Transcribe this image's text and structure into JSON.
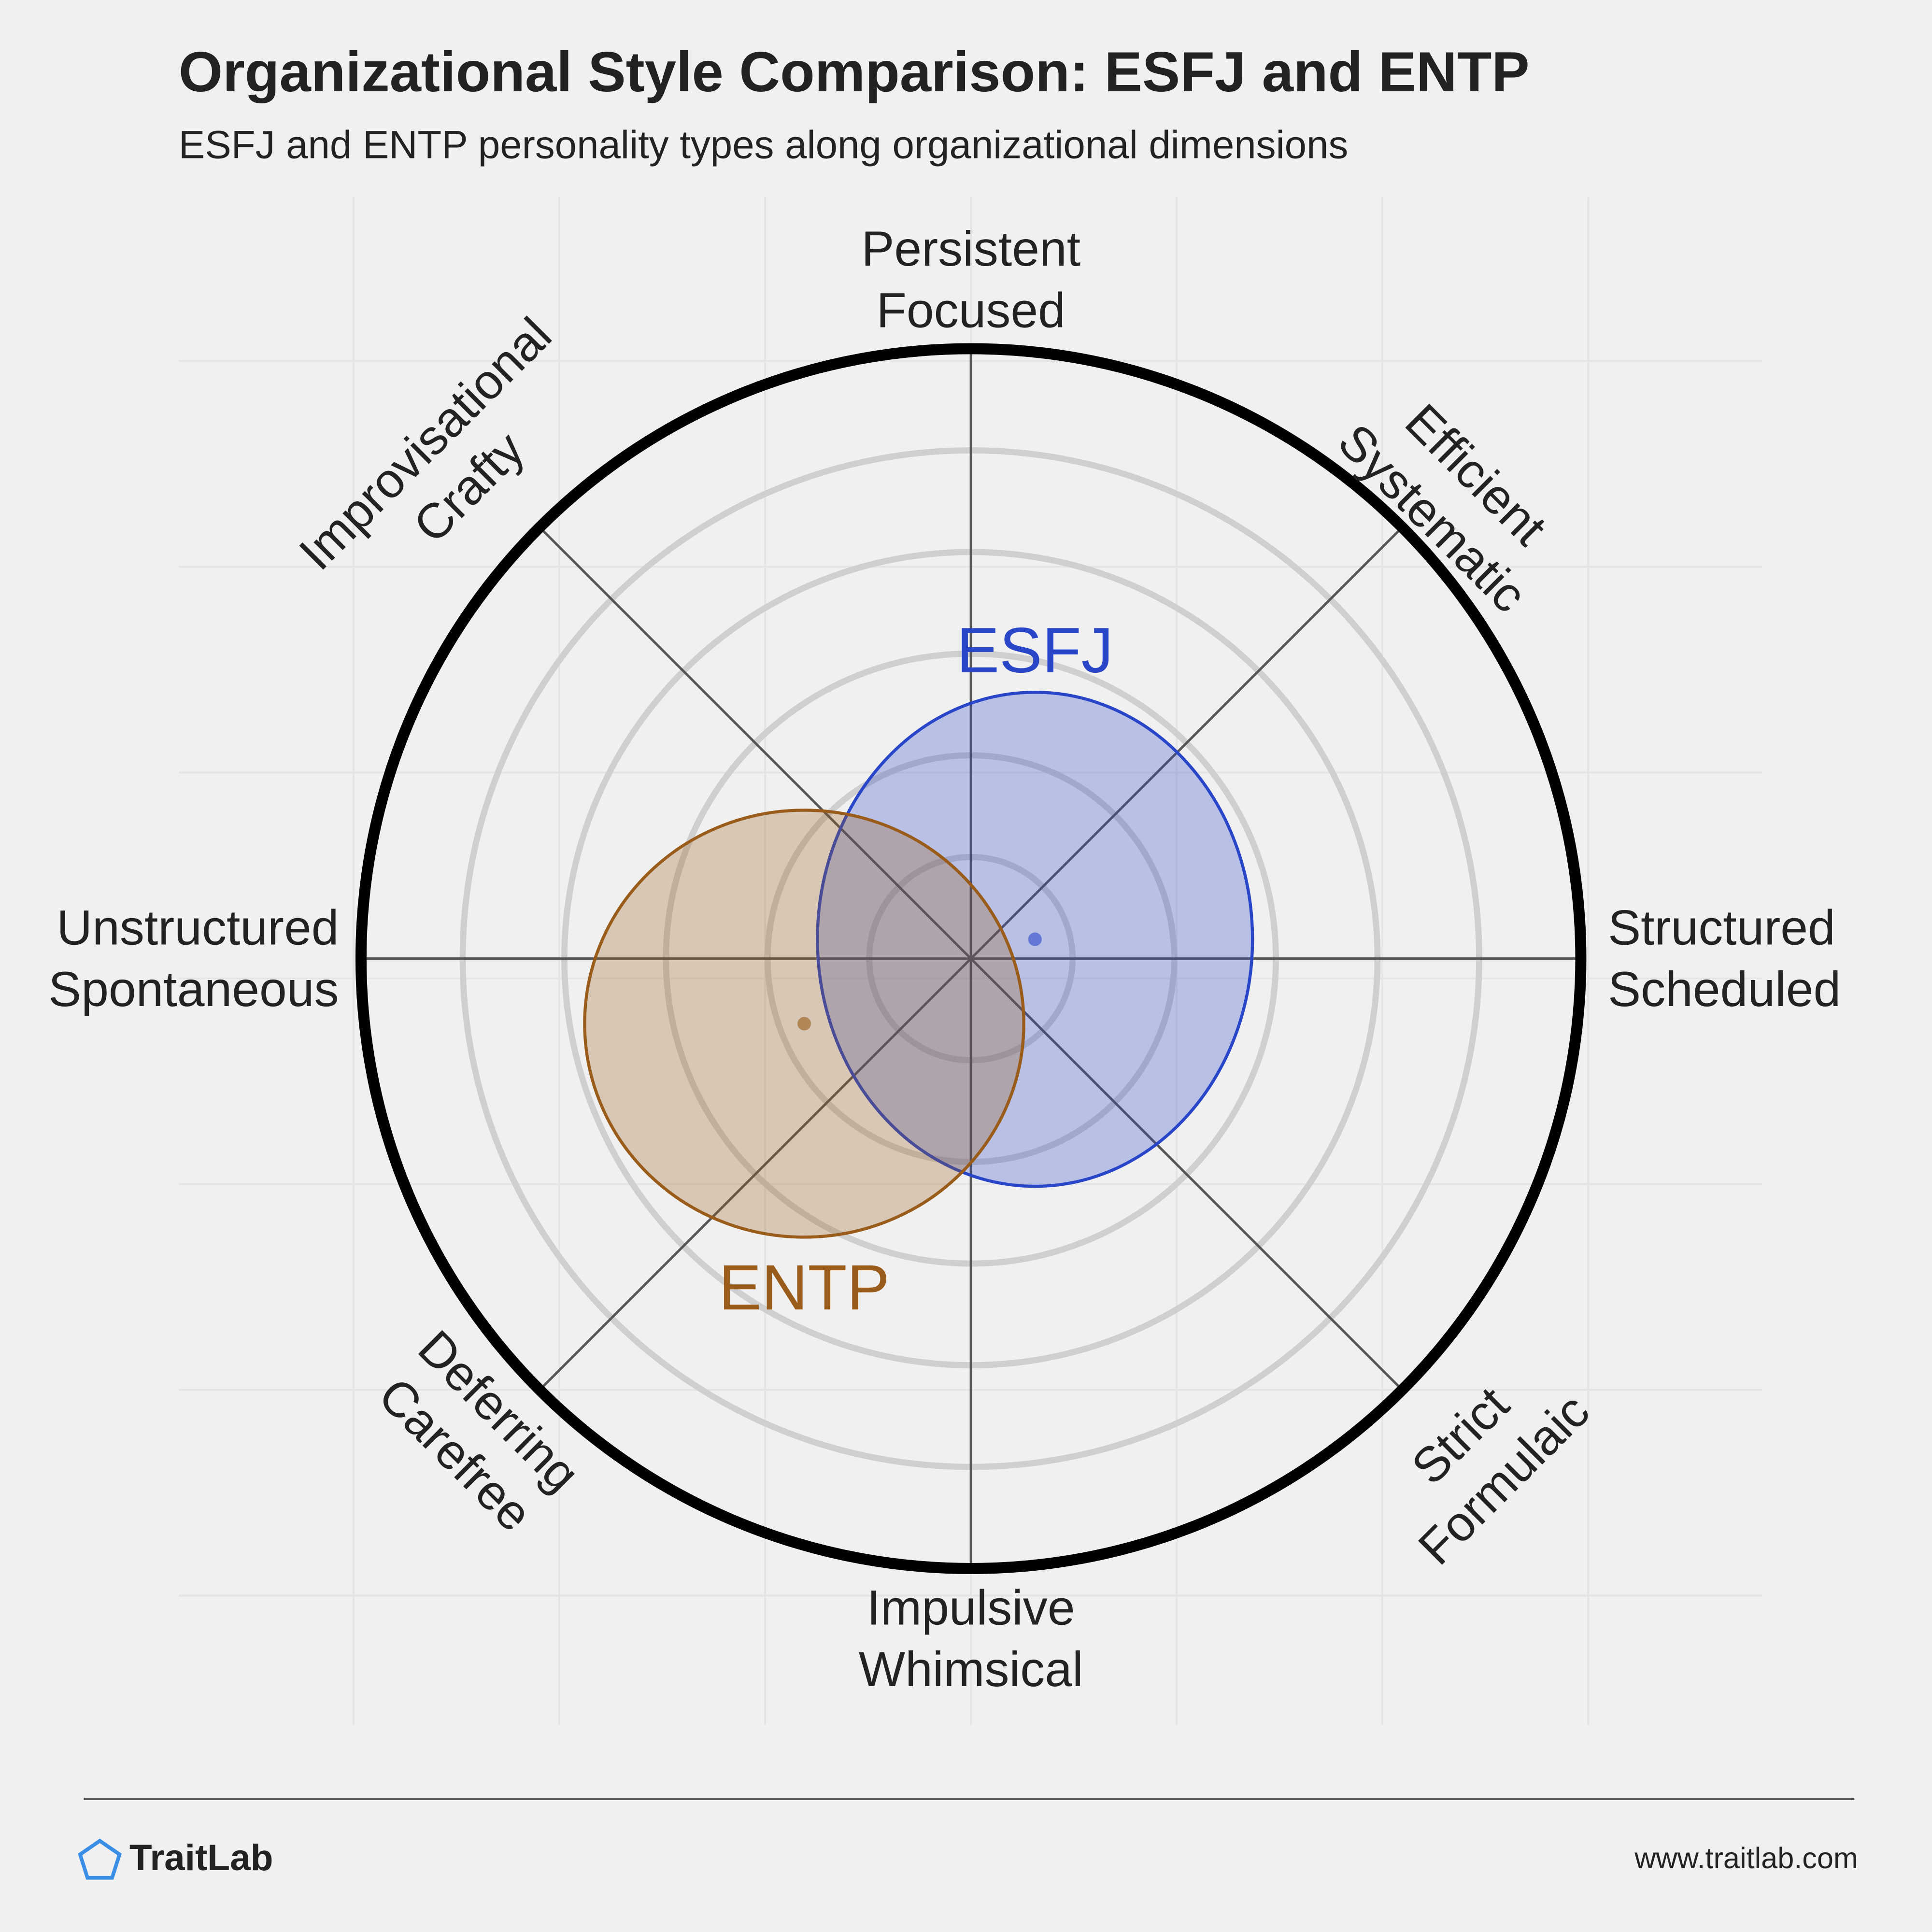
{
  "chart_data": {
    "type": "radial-ellipse",
    "title": "Organizational Style Comparison: ESFJ and ENTP",
    "subtitle": "ESFJ and ENTP personality types along organizational dimensions",
    "axis_labels": [
      [
        "Persistent",
        "Focused"
      ],
      [
        "Efficient",
        "Systematic"
      ],
      [
        "Structured",
        "Scheduled"
      ],
      [
        "Strict",
        "Formulaic"
      ],
      [
        "Impulsive",
        "Whimsical"
      ],
      [
        "Deferring",
        "Carefree"
      ],
      [
        "Unstructured",
        "Spontaneous"
      ],
      [
        "Improvisational",
        "Crafty"
      ]
    ],
    "rlim": [
      0,
      6
    ],
    "rticks": [
      1,
      2,
      3,
      4,
      5
    ],
    "series": [
      {
        "name": "ESFJ",
        "color": "#2a46c8",
        "x": 0.63,
        "y": 0.19,
        "rx": 2.14,
        "ry": 2.43
      },
      {
        "name": "ENTP",
        "color": "#9a5c1a",
        "x": -1.64,
        "y": -0.64,
        "rx": 2.16,
        "ry": 2.1
      }
    ]
  },
  "footer": {
    "brand": "TraitLab",
    "url": "www.traitlab.com"
  }
}
